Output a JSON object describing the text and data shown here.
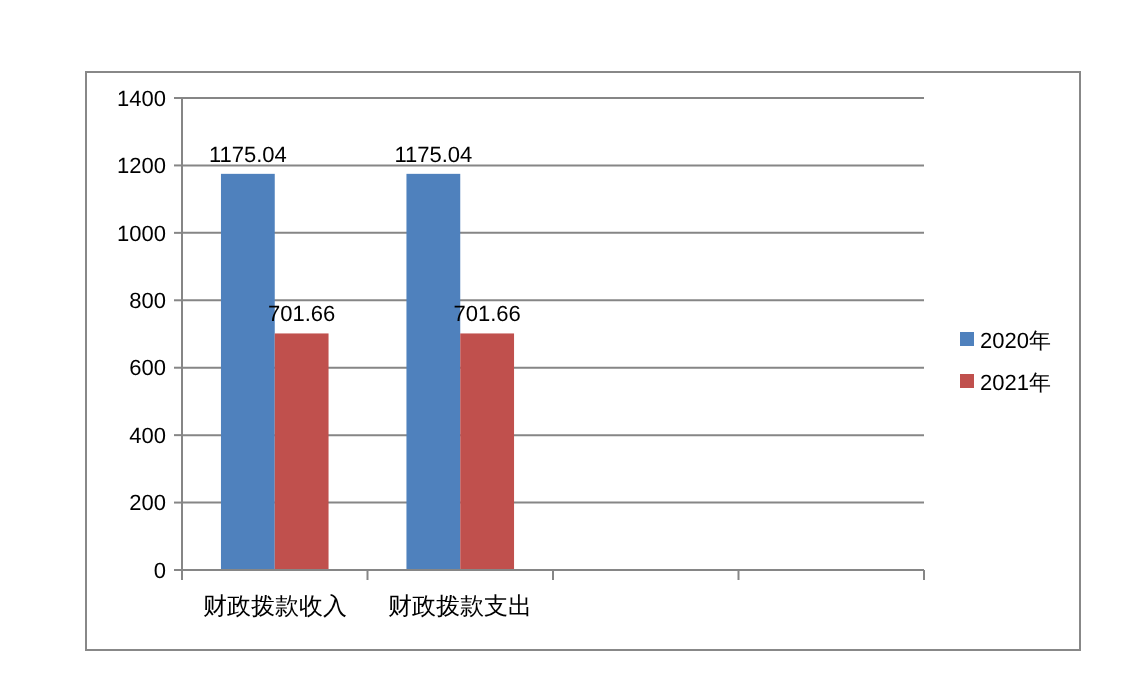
{
  "chart_data": {
    "type": "bar",
    "categories": [
      "财政拨款收入",
      "财政拨款支出",
      null,
      null
    ],
    "series": [
      {
        "name": "2020年",
        "color": "#4f81bd",
        "values": [
          1175.04,
          1175.04,
          null,
          null
        ]
      },
      {
        "name": "2021年",
        "color": "#c0504d",
        "values": [
          701.66,
          701.66,
          null,
          null
        ]
      }
    ],
    "ylim": [
      0,
      1400
    ],
    "yticks": [
      0,
      200,
      400,
      600,
      800,
      1000,
      1200,
      1400
    ],
    "grid": "y",
    "legend": "right",
    "data_labels": true
  }
}
